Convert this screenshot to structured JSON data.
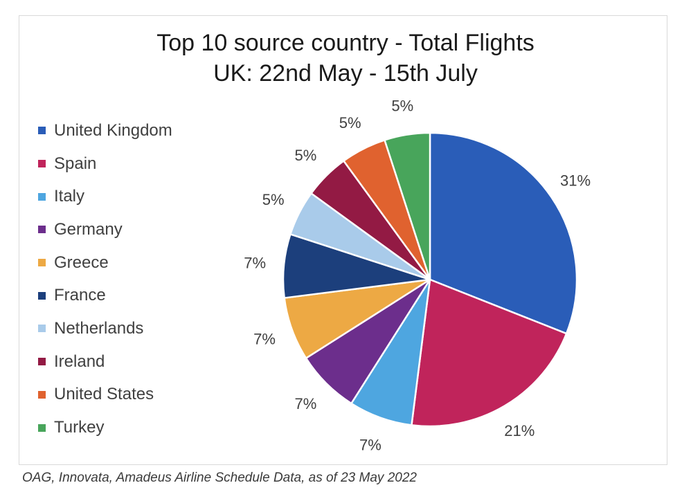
{
  "chart_data": {
    "type": "pie",
    "title": "Top 10 source country - Total Flights",
    "subtitle": "UK: 22nd May - 15th July",
    "legend_position": "left",
    "categories": [
      "United Kingdom",
      "Spain",
      "Italy",
      "Germany",
      "Greece",
      "France",
      "Netherlands",
      "Ireland",
      "United States",
      "Turkey"
    ],
    "values": [
      31,
      21,
      7,
      7,
      7,
      7,
      5,
      5,
      5,
      5
    ],
    "labels": [
      "31%",
      "21%",
      "7%",
      "7%",
      "7%",
      "7%",
      "5%",
      "5%",
      "5%",
      "5%"
    ],
    "colors": [
      "#2A5DB8",
      "#C0245B",
      "#4EA6E0",
      "#6C2E8C",
      "#EDA944",
      "#1C3F7C",
      "#A9CBEA",
      "#931A44",
      "#E0622F",
      "#48A55B"
    ]
  },
  "footer": {
    "source": "OAG, Innovata, Amadeus Airline Schedule Data, as of 23 May 2022"
  }
}
